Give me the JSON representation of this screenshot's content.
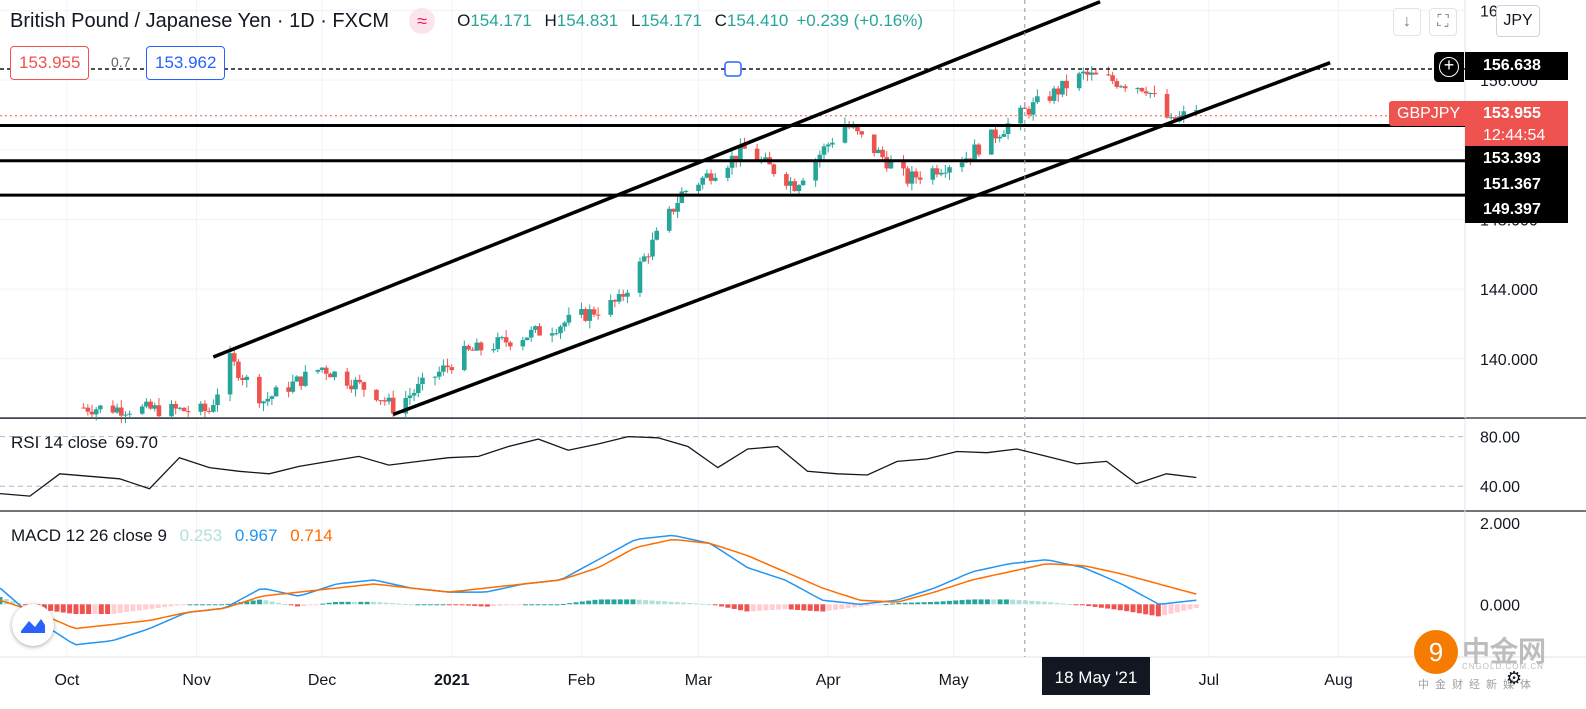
{
  "header": {
    "title": "British Pound / Japanese Yen · 1D · FXCM",
    "ohlc": [
      {
        "k": "O",
        "v": "154.171"
      },
      {
        "k": "H",
        "v": "154.831"
      },
      {
        "k": "L",
        "v": "154.171"
      },
      {
        "k": "C",
        "v": "154.410"
      }
    ],
    "change": "+0.239 (+0.16%)",
    "sell_price": "153.955",
    "buy_price": "153.962",
    "spread": "0.7",
    "currency": "JPY"
  },
  "price_tags": {
    "alert": "156.638",
    "symbol": "GBPJPY",
    "last": "153.955",
    "countdown": "12:44:54",
    "levels": [
      "153.393",
      "151.367",
      "149.397"
    ]
  },
  "crosshair_date": "18 May '21",
  "colors": {
    "up": "#26a69a",
    "down": "#ef5350",
    "macd": "#2196f3",
    "signal": "#ff6d00",
    "hist_up_strong": "#26a69a",
    "hist_up_weak": "#b2dfdb",
    "hist_down_strong": "#ef5350",
    "hist_down_weak": "#ffcdd2"
  },
  "indicators": {
    "rsi": {
      "label": "RSI 14 close",
      "value": "69.70"
    },
    "macd": {
      "label": "MACD 12 26 close 9",
      "hist": "0.253",
      "macd": "0.967",
      "signal": "0.714"
    }
  },
  "watermark": {
    "cn": "中金网",
    "en": "CNGOLD.COM.CN",
    "sub": "中金财经新媒体"
  },
  "chart_data": {
    "type": "candlestick",
    "title": "British Pound / Japanese Yen · 1D · FXCM",
    "price_axis": {
      "ticks": [
        "160.000",
        "156.000",
        "152.000",
        "148.000",
        "144.000",
        "140.000"
      ],
      "range": [
        136.6,
        160.6
      ]
    },
    "x_ticks": [
      "Oct",
      "Nov",
      "Dec",
      "2021",
      "Feb",
      "Mar",
      "Apr",
      "May",
      "Jun",
      "Jul",
      "Aug"
    ],
    "horizontal_levels": [
      156.638,
      153.393,
      151.367,
      149.397
    ],
    "trend_channel": {
      "upper": [
        {
          "date": "2020-11-05",
          "price": 140.1
        },
        {
          "date": "2021-06-05",
          "price": 160.5
        }
      ],
      "lower": [
        {
          "date": "2020-12-18",
          "price": 136.8
        },
        {
          "date": "2021-07-30",
          "price": 157.0
        }
      ]
    },
    "price_series": [
      {
        "date": "2020-10-05",
        "close": 137.2
      },
      {
        "date": "2020-11-04",
        "close": 137.0
      },
      {
        "date": "2020-11-09",
        "close": 139.9
      },
      {
        "date": "2020-11-17",
        "close": 137.6
      },
      {
        "date": "2020-12-01",
        "close": 139.5
      },
      {
        "date": "2020-12-14",
        "close": 138.0
      },
      {
        "date": "2020-12-18",
        "close": 137.2
      },
      {
        "date": "2021-01-04",
        "close": 140.3
      },
      {
        "date": "2021-01-25",
        "close": 141.8
      },
      {
        "date": "2021-02-10",
        "close": 143.3
      },
      {
        "date": "2021-02-25",
        "close": 149.5
      },
      {
        "date": "2021-03-12",
        "close": 152.0
      },
      {
        "date": "2021-03-24",
        "close": 150.0
      },
      {
        "date": "2021-04-05",
        "close": 153.5
      },
      {
        "date": "2021-04-20",
        "close": 150.3
      },
      {
        "date": "2021-05-04",
        "close": 151.6
      },
      {
        "date": "2021-05-18",
        "close": 154.2
      },
      {
        "date": "2021-06-01",
        "close": 156.3
      },
      {
        "date": "2021-06-16",
        "close": 155.6
      },
      {
        "date": "2021-06-22",
        "close": 153.5
      },
      {
        "date": "2021-06-28",
        "close": 154.4
      }
    ],
    "rsi_axis": {
      "ticks": [
        "80.00",
        "40.00"
      ],
      "range": [
        20,
        95
      ]
    },
    "rsi_series": [
      34,
      32,
      50,
      48,
      46,
      38,
      63,
      55,
      52,
      50,
      56,
      60,
      64,
      57,
      60,
      63,
      64,
      72,
      78,
      69,
      74,
      80,
      79,
      72,
      55,
      70,
      72,
      52,
      50,
      49,
      60,
      62,
      68,
      67,
      70,
      64,
      58,
      60,
      42,
      50,
      47
    ],
    "macd_axis": {
      "ticks": [
        "2.000",
        "0.000"
      ],
      "range": [
        -1.3,
        2.3
      ]
    },
    "macd_series": [
      0.4,
      -0.4,
      -1.0,
      -0.9,
      -0.6,
      -0.2,
      -0.1,
      0.4,
      0.2,
      0.5,
      0.6,
      0.4,
      0.3,
      0.3,
      0.5,
      0.6,
      1.1,
      1.6,
      1.7,
      1.5,
      0.9,
      0.6,
      0.1,
      0.0,
      0.1,
      0.4,
      0.8,
      1.0,
      1.1,
      0.9,
      0.5,
      0.0,
      0.1
    ],
    "signal_series": [
      0.1,
      -0.2,
      -0.6,
      -0.5,
      -0.4,
      -0.2,
      -0.1,
      0.2,
      0.3,
      0.4,
      0.5,
      0.4,
      0.3,
      0.4,
      0.5,
      0.6,
      0.9,
      1.4,
      1.6,
      1.5,
      1.2,
      0.8,
      0.4,
      0.1,
      0.05,
      0.3,
      0.6,
      0.8,
      1.0,
      0.95,
      0.75,
      0.5,
      0.25
    ]
  }
}
